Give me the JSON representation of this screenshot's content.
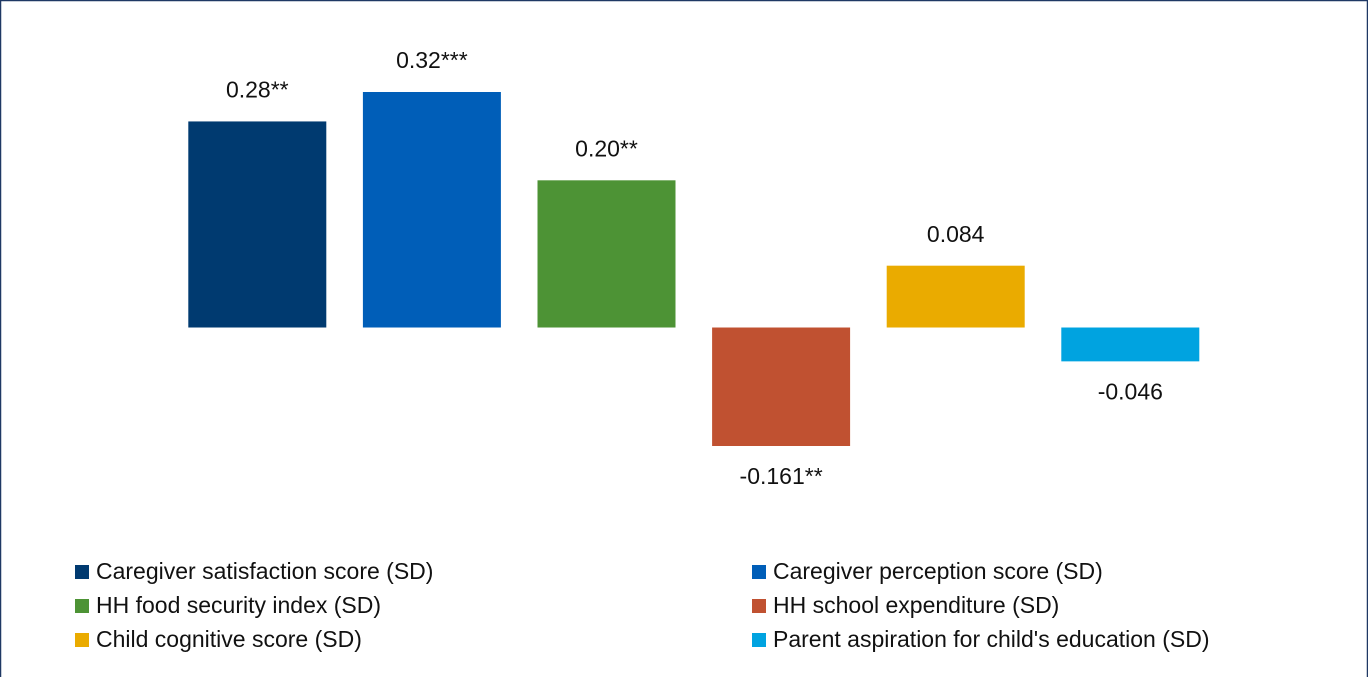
{
  "chart_data": {
    "type": "bar",
    "categories": [
      "Caregiver satisfaction score (SD)",
      "Caregiver perception score (SD)",
      "HH food security index (SD)",
      "HH school expenditure (SD)",
      "Child cognitive score (SD)",
      "Parent aspiration for child's education (SD)"
    ],
    "values": [
      0.28,
      0.32,
      0.2,
      -0.161,
      0.084,
      -0.046
    ],
    "value_labels": [
      "0.28**",
      "0.32***",
      "0.20**",
      "-0.161**",
      "0.084",
      "-0.046"
    ],
    "colors": [
      "#003a70",
      "#005eb8",
      "#4d9335",
      "#c05131",
      "#eaab00",
      "#00a3e0"
    ],
    "legend": "bottom"
  }
}
